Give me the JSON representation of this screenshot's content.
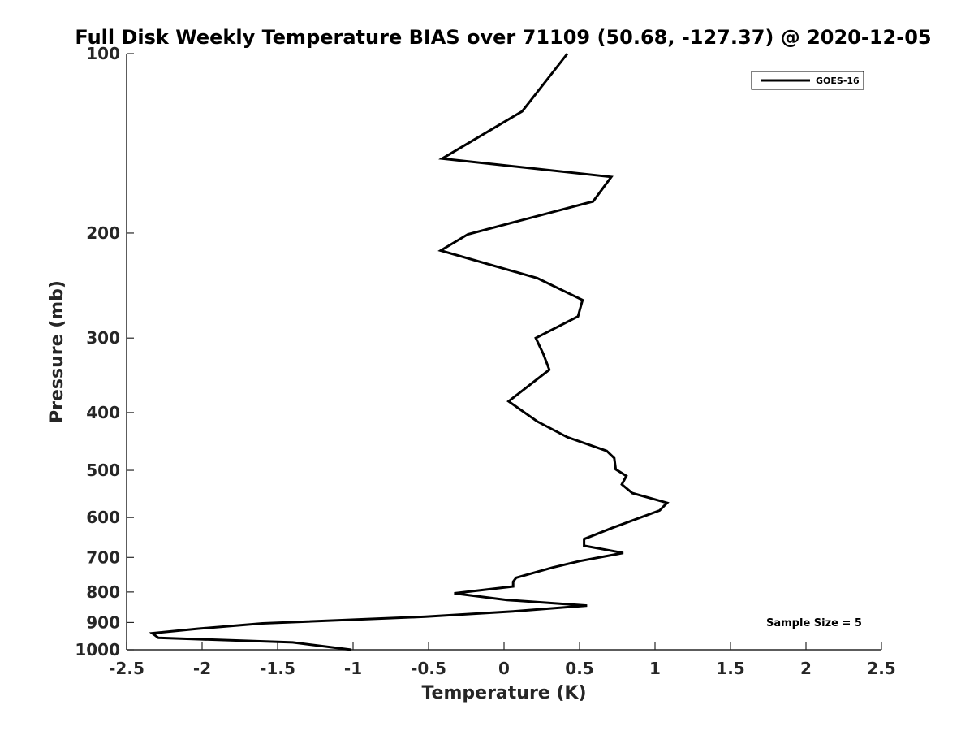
{
  "chart_data": {
    "type": "line",
    "title": "Full Disk Weekly Temperature BIAS over 71109 (50.68, -127.37) @ 2020-12-05",
    "xlabel": "Temperature (K)",
    "ylabel": "Pressure (mb)",
    "xlim": [
      -2.5,
      2.5
    ],
    "ylim": [
      100,
      1000
    ],
    "yscale": "log",
    "y_reversed": true,
    "x_ticks": [
      -2.5,
      -2,
      -1.5,
      -1,
      -0.5,
      0,
      0.5,
      1,
      1.5,
      2,
      2.5
    ],
    "x_tick_labels": [
      "-2.5",
      "-2",
      "-1.5",
      "-1",
      "-0.5",
      "0",
      "0.5",
      "1",
      "1.5",
      "2",
      "2.5"
    ],
    "y_ticks": [
      100,
      200,
      300,
      400,
      500,
      600,
      700,
      800,
      900,
      1000
    ],
    "y_tick_labels": [
      "100",
      "200",
      "300",
      "400",
      "500",
      "600",
      "700",
      "800",
      "900",
      "1000"
    ],
    "grid": false,
    "legend_position": "top-right",
    "series": [
      {
        "name": "GOES-16",
        "color": "#000000",
        "points": [
          {
            "x": 0.42,
            "y": 100
          },
          {
            "x": 0.12,
            "y": 125
          },
          {
            "x": -0.41,
            "y": 150
          },
          {
            "x": 0.71,
            "y": 161
          },
          {
            "x": 0.59,
            "y": 177
          },
          {
            "x": -0.24,
            "y": 201
          },
          {
            "x": -0.42,
            "y": 214
          },
          {
            "x": 0.22,
            "y": 238
          },
          {
            "x": 0.52,
            "y": 259
          },
          {
            "x": 0.49,
            "y": 276
          },
          {
            "x": 0.21,
            "y": 300
          },
          {
            "x": 0.26,
            "y": 319
          },
          {
            "x": 0.3,
            "y": 339
          },
          {
            "x": 0.03,
            "y": 383
          },
          {
            "x": 0.22,
            "y": 414
          },
          {
            "x": 0.42,
            "y": 440
          },
          {
            "x": 0.68,
            "y": 464
          },
          {
            "x": 0.73,
            "y": 477
          },
          {
            "x": 0.74,
            "y": 498
          },
          {
            "x": 0.81,
            "y": 511
          },
          {
            "x": 0.78,
            "y": 528
          },
          {
            "x": 0.85,
            "y": 546
          },
          {
            "x": 1.08,
            "y": 567
          },
          {
            "x": 1.03,
            "y": 584
          },
          {
            "x": 0.72,
            "y": 624
          },
          {
            "x": 0.53,
            "y": 652
          },
          {
            "x": 0.53,
            "y": 669
          },
          {
            "x": 0.79,
            "y": 688
          },
          {
            "x": 0.5,
            "y": 710
          },
          {
            "x": 0.32,
            "y": 728
          },
          {
            "x": 0.08,
            "y": 757
          },
          {
            "x": 0.06,
            "y": 769
          },
          {
            "x": 0.06,
            "y": 783
          },
          {
            "x": -0.33,
            "y": 804
          },
          {
            "x": 0.02,
            "y": 825
          },
          {
            "x": 0.55,
            "y": 843
          },
          {
            "x": 0.06,
            "y": 862
          },
          {
            "x": -0.52,
            "y": 880
          },
          {
            "x": -1.6,
            "y": 903
          },
          {
            "x": -2.03,
            "y": 922
          },
          {
            "x": -2.33,
            "y": 938
          },
          {
            "x": -2.29,
            "y": 955
          },
          {
            "x": -1.4,
            "y": 972
          },
          {
            "x": -1.01,
            "y": 1000
          }
        ]
      }
    ],
    "annotations": [
      {
        "text": "Sample Size = 5",
        "position": "bottom-right"
      }
    ]
  }
}
